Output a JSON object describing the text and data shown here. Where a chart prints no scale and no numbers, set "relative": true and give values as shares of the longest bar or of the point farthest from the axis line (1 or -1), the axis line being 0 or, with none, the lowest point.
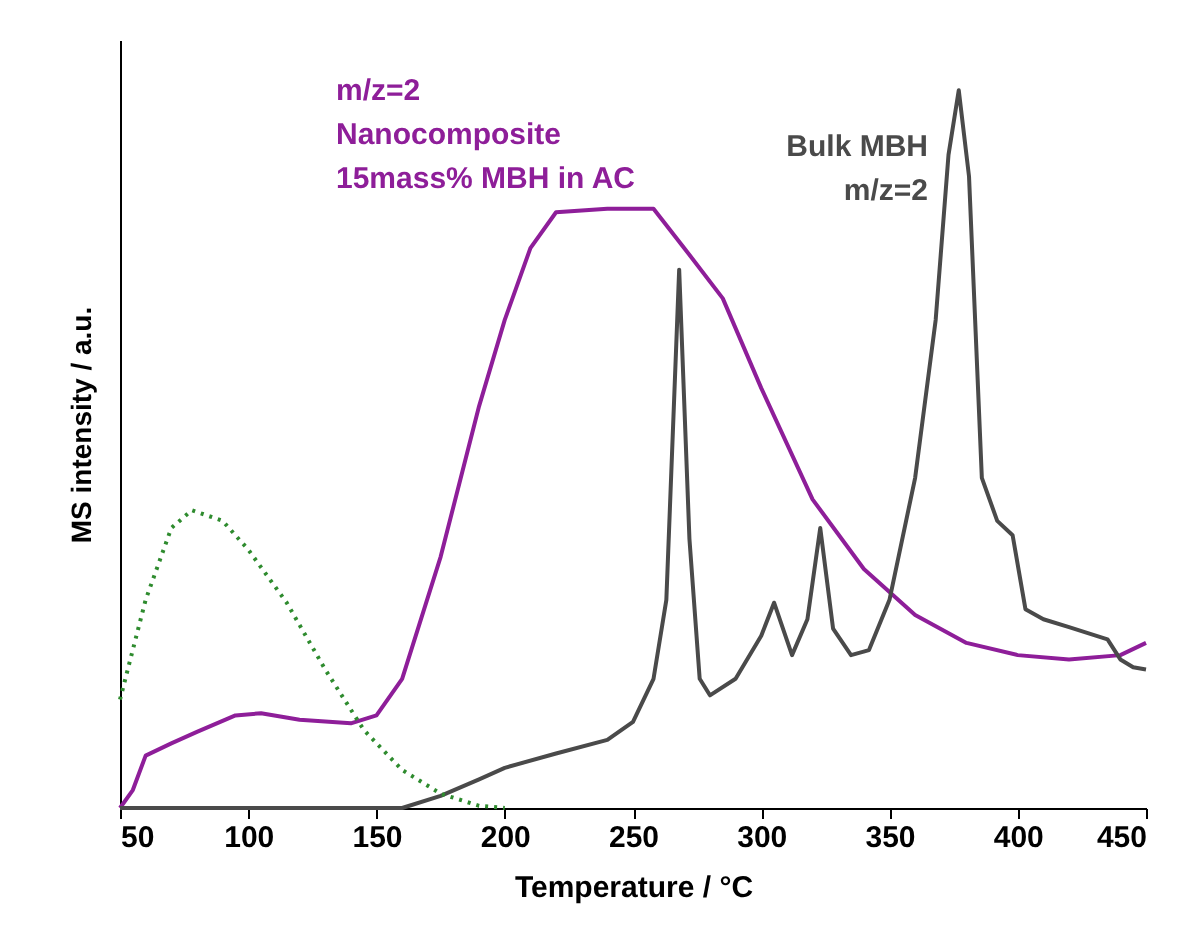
{
  "chart_data": {
    "type": "line",
    "relative": true,
    "xlabel": "Temperature  / °C",
    "ylabel": "MS intensity / a.u.",
    "xlim": [
      50,
      450
    ],
    "xticks": [
      50,
      100,
      150,
      200,
      250,
      300,
      350,
      400,
      450
    ],
    "series": [
      {
        "name": "m/z=2\nNanocomposite\n15mass% MBH in AC",
        "color": "#8e1e99",
        "x": [
          50,
          55,
          60,
          70,
          80,
          95,
          105,
          120,
          140,
          150,
          160,
          175,
          190,
          200,
          210,
          220,
          240,
          258,
          270,
          285,
          300,
          320,
          340,
          360,
          380,
          400,
          420,
          440,
          450
        ],
        "values": [
          0,
          0.025,
          0.073,
          0.09,
          0.106,
          0.129,
          0.132,
          0.123,
          0.118,
          0.129,
          0.18,
          0.35,
          0.56,
          0.68,
          0.78,
          0.83,
          0.835,
          0.835,
          0.78,
          0.71,
          0.585,
          0.43,
          0.333,
          0.269,
          0.23,
          0.213,
          0.207,
          0.213,
          0.23
        ]
      },
      {
        "name": "Bulk MBH\nm/z=2",
        "color": "#4a4a4a",
        "x": [
          50,
          150,
          160,
          175,
          190,
          200,
          220,
          240,
          250,
          258,
          263,
          268,
          272,
          276,
          280,
          290,
          300,
          305,
          312,
          318,
          323,
          328,
          335,
          342,
          350,
          360,
          368,
          373,
          377,
          381,
          386,
          392,
          398,
          403,
          410,
          420,
          435,
          440,
          445,
          450
        ],
        "values": [
          0,
          0,
          0,
          0.017,
          0.04,
          0.056,
          0.076,
          0.095,
          0.12,
          0.18,
          0.29,
          0.75,
          0.375,
          0.18,
          0.157,
          0.18,
          0.24,
          0.286,
          0.213,
          0.263,
          0.39,
          0.25,
          0.213,
          0.22,
          0.29,
          0.46,
          0.68,
          0.91,
          1,
          0.88,
          0.46,
          0.4,
          0.38,
          0.277,
          0.263,
          0.252,
          0.235,
          0.207,
          0.196,
          0.193
        ]
      },
      {
        "color": "#2e8b2e",
        "line_style": "dotted",
        "x": [
          50,
          60,
          70,
          78,
          90,
          100,
          115,
          130,
          145,
          160,
          175,
          190,
          200
        ],
        "values": [
          0.151,
          0.29,
          0.39,
          0.415,
          0.4,
          0.36,
          0.286,
          0.193,
          0.109,
          0.053,
          0.02,
          0.003,
          0
        ]
      }
    ]
  }
}
